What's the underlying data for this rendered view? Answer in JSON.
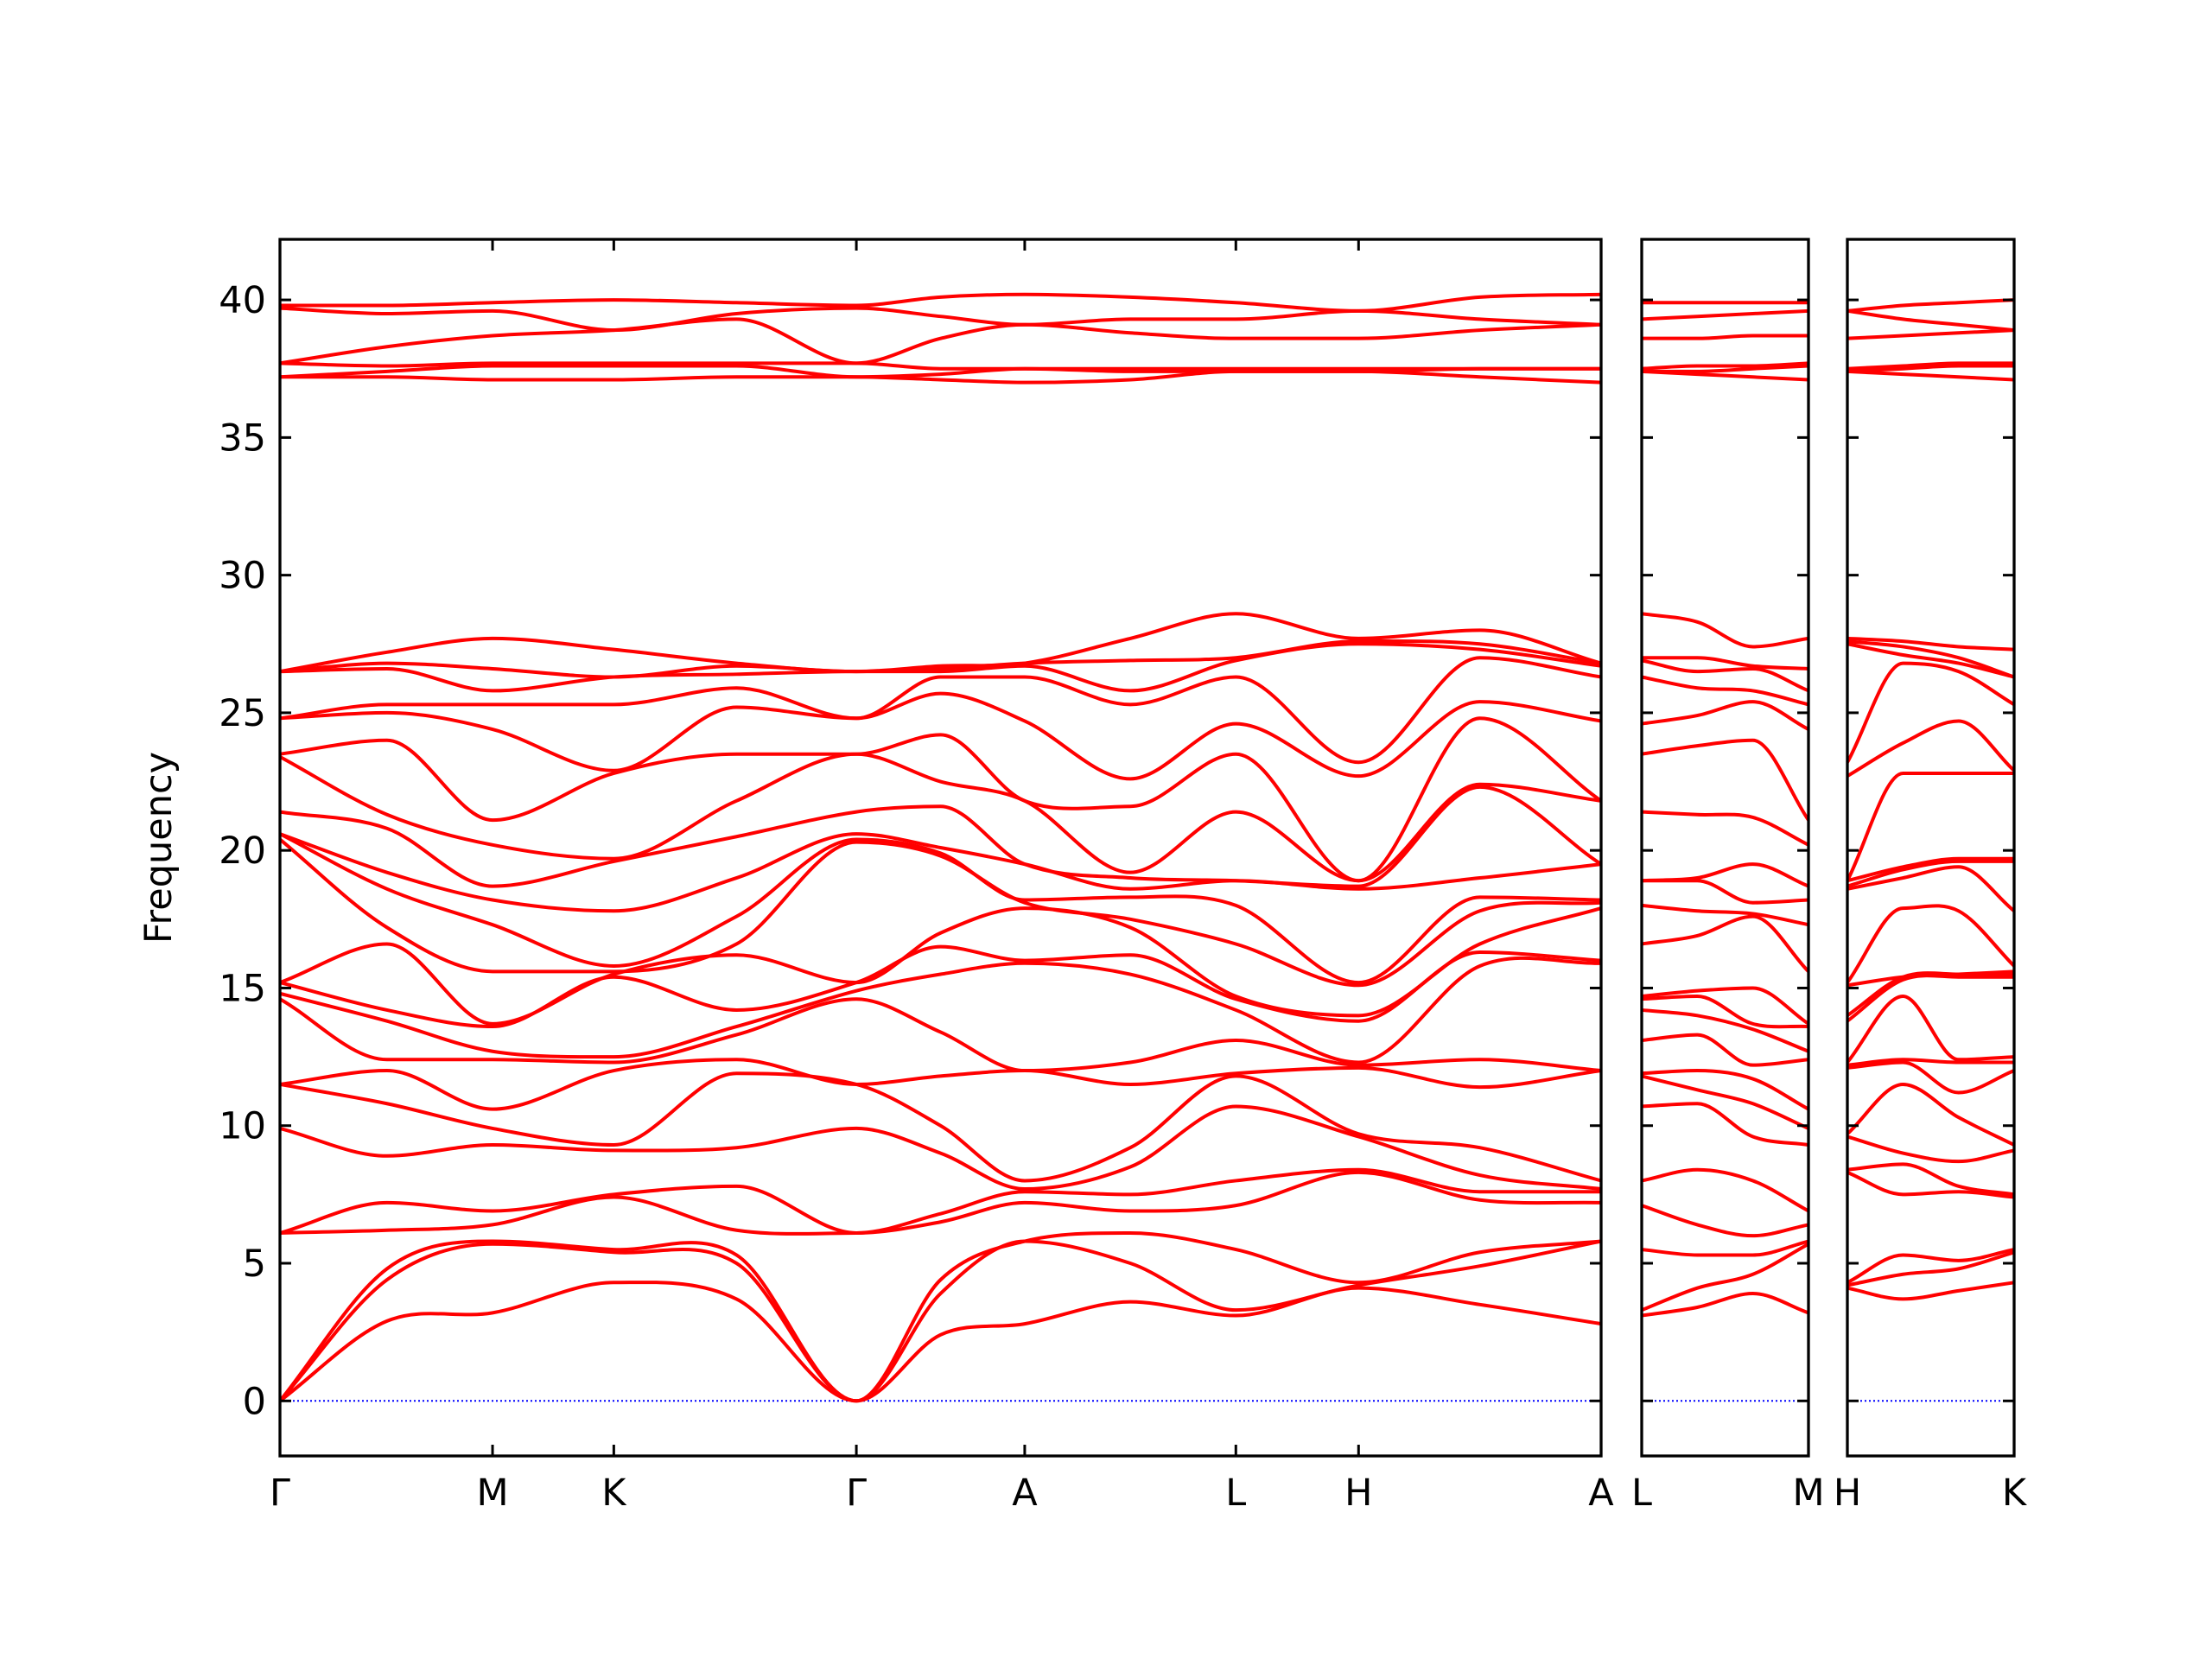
{
  "chart_data": [
    {
      "type": "line",
      "ylabel": "Frequency",
      "color": "#ff0000",
      "hline": 0,
      "hline_color": "#0000ff",
      "xlim": [
        0,
        9.26
      ],
      "ylim": [
        -2,
        42.2
      ],
      "yticks": [
        0,
        5,
        10,
        15,
        20,
        25,
        30,
        35,
        40
      ],
      "xticks": [
        {
          "value": 0,
          "label": "Γ"
        },
        {
          "value": 1.49,
          "label": "M"
        },
        {
          "value": 2.34,
          "label": "K"
        },
        {
          "value": 4.04,
          "label": "Γ"
        },
        {
          "value": 5.22,
          "label": "A"
        },
        {
          "value": 6.7,
          "label": "L"
        },
        {
          "value": 7.56,
          "label": "H"
        },
        {
          "value": 9.26,
          "label": "A"
        }
      ],
      "x": [
        0,
        0.75,
        1.49,
        2.34,
        3.2,
        4.04,
        4.63,
        5.22,
        5.96,
        6.7,
        7.56,
        8.41,
        9.26
      ],
      "series": [
        {
          "values": [
            0,
            2.9,
            3.2,
            4.3,
            3.7,
            0,
            2.4,
            2.8,
            3.6,
            3.1,
            4.1,
            3.5,
            2.8
          ]
        },
        {
          "values": [
            0,
            4.4,
            5.7,
            5.4,
            5.0,
            0,
            3.9,
            5.8,
            5.0,
            3.3,
            4.2,
            4.9,
            5.8
          ]
        },
        {
          "values": [
            0,
            4.8,
            5.8,
            5.5,
            5.3,
            0,
            4.4,
            5.8,
            6.1,
            5.5,
            4.3,
            5.4,
            5.8
          ]
        },
        {
          "values": [
            6.1,
            6.2,
            6.4,
            7.4,
            6.2,
            6.1,
            6.5,
            7.2,
            6.9,
            7.1,
            8.3,
            7.3,
            7.2
          ]
        },
        {
          "values": [
            6.1,
            7.2,
            6.9,
            7.5,
            7.8,
            6.1,
            6.8,
            7.6,
            7.5,
            8.0,
            8.4,
            7.6,
            7.6
          ]
        },
        {
          "values": [
            9.9,
            8.9,
            9.3,
            9.1,
            9.2,
            9.9,
            9.0,
            7.7,
            8.5,
            10.7,
            9.6,
            8.2,
            7.7
          ]
        },
        {
          "values": [
            11.5,
            10.8,
            9.9,
            9.3,
            11.9,
            11.5,
            10.0,
            8.0,
            9.2,
            11.8,
            9.7,
            9.2,
            8.0
          ]
        },
        {
          "values": [
            11.5,
            12.0,
            10.6,
            12.0,
            12.4,
            11.5,
            11.8,
            12.0,
            11.5,
            11.9,
            12.1,
            11.4,
            12.0
          ]
        },
        {
          "values": [
            14.6,
            12.4,
            12.4,
            12.3,
            13.3,
            14.6,
            13.4,
            12.0,
            12.3,
            13.1,
            12.2,
            12.4,
            12.0
          ]
        },
        {
          "values": [
            14.8,
            13.8,
            12.7,
            12.5,
            13.6,
            14.9,
            15.5,
            15.9,
            15.5,
            14.2,
            12.3,
            15.8,
            15.9
          ]
        },
        {
          "values": [
            15.2,
            14.2,
            13.6,
            15.4,
            14.2,
            15.2,
            16.5,
            16.0,
            16.2,
            14.6,
            13.8,
            16.3,
            16.0
          ]
        },
        {
          "values": [
            15.2,
            16.6,
            13.7,
            15.5,
            16.2,
            15.2,
            17.0,
            17.9,
            17.2,
            14.7,
            14.0,
            16.6,
            17.9
          ]
        },
        {
          "values": [
            20.4,
            17.2,
            15.6,
            15.6,
            16.6,
            20.3,
            19.8,
            18.1,
            17.5,
            16.6,
            15.1,
            17.8,
            18.1
          ]
        },
        {
          "values": [
            20.6,
            18.6,
            17.3,
            15.8,
            17.6,
            20.4,
            19.9,
            18.2,
            18.3,
            18.0,
            15.2,
            18.3,
            18.2
          ]
        },
        {
          "values": [
            20.6,
            19.2,
            18.2,
            17.8,
            19.0,
            20.6,
            20.1,
            19.5,
            18.6,
            18.9,
            18.6,
            19.0,
            19.5
          ]
        },
        {
          "values": [
            21.4,
            20.8,
            18.7,
            19.6,
            20.5,
            21.4,
            21.6,
            19.5,
            19.0,
            18.9,
            18.7,
            22.3,
            19.5
          ]
        },
        {
          "values": [
            23.4,
            21.3,
            20.2,
            19.7,
            21.8,
            23.5,
            22.5,
            21.8,
            19.2,
            21.4,
            18.9,
            22.4,
            21.8
          ]
        },
        {
          "values": [
            23.5,
            24.0,
            21.1,
            22.8,
            23.5,
            23.5,
            24.2,
            21.8,
            21.6,
            23.5,
            18.9,
            24.8,
            21.8
          ]
        },
        {
          "values": [
            24.8,
            25.0,
            24.4,
            22.9,
            25.2,
            24.8,
            25.7,
            24.7,
            22.6,
            24.6,
            22.7,
            25.4,
            24.7
          ]
        },
        {
          "values": [
            24.8,
            25.3,
            25.3,
            25.3,
            25.9,
            24.8,
            26.3,
            26.3,
            25.3,
            26.3,
            23.2,
            27.0,
            26.3
          ]
        },
        {
          "values": [
            26.5,
            26.6,
            25.8,
            26.3,
            26.4,
            26.5,
            26.5,
            26.7,
            25.8,
            26.9,
            27.5,
            27.3,
            26.7
          ]
        },
        {
          "values": [
            26.5,
            26.8,
            26.6,
            26.3,
            26.7,
            26.5,
            26.6,
            26.8,
            26.9,
            27.0,
            27.6,
            27.5,
            26.8
          ]
        },
        {
          "values": [
            26.5,
            27.2,
            27.7,
            27.3,
            26.8,
            26.5,
            26.7,
            26.8,
            27.7,
            28.6,
            27.7,
            28.0,
            26.8
          ]
        },
        {
          "values": [
            37.2,
            37.2,
            37.1,
            37.1,
            37.2,
            37.2,
            37.1,
            37.0,
            37.1,
            37.4,
            37.4,
            37.2,
            37.0
          ]
        },
        {
          "values": [
            37.2,
            37.4,
            37.6,
            37.6,
            37.6,
            37.2,
            37.3,
            37.5,
            37.4,
            37.4,
            37.4,
            37.5,
            37.5
          ]
        },
        {
          "values": [
            37.7,
            37.6,
            37.7,
            37.7,
            37.7,
            37.7,
            37.5,
            37.5,
            37.5,
            37.5,
            37.5,
            37.5,
            37.5
          ]
        },
        {
          "values": [
            37.7,
            38.3,
            38.7,
            38.9,
            39.3,
            37.7,
            38.6,
            39.1,
            38.8,
            38.6,
            38.6,
            38.9,
            39.1
          ]
        },
        {
          "values": [
            39.7,
            39.5,
            39.6,
            38.9,
            39.5,
            39.7,
            39.4,
            39.1,
            39.3,
            39.3,
            39.6,
            39.3,
            39.1
          ]
        },
        {
          "values": [
            39.8,
            39.8,
            39.9,
            40.0,
            39.9,
            39.8,
            40.1,
            40.2,
            40.1,
            39.9,
            39.6,
            40.1,
            40.2
          ]
        }
      ]
    },
    {
      "type": "line",
      "color": "#ff0000",
      "hline": 0,
      "hline_color": "#0000ff",
      "xlim": [
        0,
        1.17
      ],
      "ylim": [
        -2,
        42.2
      ],
      "yticks": [
        0,
        5,
        10,
        15,
        20,
        25,
        30,
        35,
        40
      ],
      "xticks": [
        {
          "value": 0,
          "label": "L"
        },
        {
          "value": 1.17,
          "label": "M"
        }
      ],
      "x": [
        0,
        0.39,
        0.78,
        1.17
      ],
      "series": [
        {
          "values": [
            3.1,
            3.4,
            3.9,
            3.2
          ]
        },
        {
          "values": [
            3.3,
            4.1,
            4.6,
            5.7
          ]
        },
        {
          "values": [
            5.5,
            5.3,
            5.3,
            5.8
          ]
        },
        {
          "values": [
            7.1,
            6.4,
            6.0,
            6.4
          ]
        },
        {
          "values": [
            8.0,
            8.4,
            8.0,
            6.9
          ]
        },
        {
          "values": [
            10.7,
            10.8,
            9.6,
            9.3
          ]
        },
        {
          "values": [
            11.8,
            11.3,
            10.8,
            9.9
          ]
        },
        {
          "values": [
            11.9,
            12.0,
            11.7,
            10.6
          ]
        },
        {
          "values": [
            13.1,
            13.3,
            12.2,
            12.4
          ]
        },
        {
          "values": [
            14.2,
            14.0,
            13.5,
            12.7
          ]
        },
        {
          "values": [
            14.6,
            14.7,
            13.7,
            13.6
          ]
        },
        {
          "values": [
            14.7,
            14.9,
            15.0,
            13.7
          ]
        },
        {
          "values": [
            16.6,
            16.9,
            17.6,
            15.6
          ]
        },
        {
          "values": [
            18.0,
            17.8,
            17.7,
            17.3
          ]
        },
        {
          "values": [
            18.9,
            18.9,
            18.1,
            18.2
          ]
        },
        {
          "values": [
            18.9,
            19.0,
            19.5,
            18.7
          ]
        },
        {
          "values": [
            21.4,
            21.3,
            21.2,
            20.2
          ]
        },
        {
          "values": [
            23.5,
            23.8,
            24.0,
            21.1
          ]
        },
        {
          "values": [
            24.6,
            24.9,
            25.4,
            24.4
          ]
        },
        {
          "values": [
            26.3,
            25.9,
            25.8,
            25.3
          ]
        },
        {
          "values": [
            26.9,
            26.5,
            26.6,
            25.8
          ]
        },
        {
          "values": [
            27.0,
            27.0,
            26.7,
            26.6
          ]
        },
        {
          "values": [
            28.6,
            28.3,
            27.4,
            27.7
          ]
        },
        {
          "values": [
            37.4,
            37.3,
            37.2,
            37.1
          ]
        },
        {
          "values": [
            37.4,
            37.4,
            37.5,
            37.6
          ]
        },
        {
          "values": [
            37.5,
            37.6,
            37.6,
            37.7
          ]
        },
        {
          "values": [
            38.6,
            38.6,
            38.7,
            38.7
          ]
        },
        {
          "values": [
            39.3,
            39.4,
            39.5,
            39.6
          ]
        },
        {
          "values": [
            39.9,
            39.9,
            39.9,
            39.9
          ]
        }
      ]
    },
    {
      "type": "line",
      "color": "#ff0000",
      "hline": 0,
      "hline_color": "#0000ff",
      "xlim": [
        0,
        1.17
      ],
      "ylim": [
        -2,
        42.2
      ],
      "yticks": [
        0,
        5,
        10,
        15,
        20,
        25,
        30,
        35,
        40
      ],
      "xticks": [
        {
          "value": 0,
          "label": "H"
        },
        {
          "value": 1.17,
          "label": "K"
        }
      ],
      "x": [
        0,
        0.39,
        0.78,
        1.17
      ],
      "series": [
        {
          "values": [
            4.1,
            3.7,
            4.0,
            4.3
          ]
        },
        {
          "values": [
            4.2,
            4.6,
            4.8,
            5.4
          ]
        },
        {
          "values": [
            4.3,
            5.3,
            5.1,
            5.5
          ]
        },
        {
          "values": [
            8.3,
            7.5,
            7.6,
            7.4
          ]
        },
        {
          "values": [
            8.4,
            8.6,
            7.8,
            7.5
          ]
        },
        {
          "values": [
            9.6,
            9.0,
            8.7,
            9.1
          ]
        },
        {
          "values": [
            9.7,
            11.5,
            10.3,
            9.3
          ]
        },
        {
          "values": [
            12.1,
            12.3,
            11.2,
            12.0
          ]
        },
        {
          "values": [
            12.2,
            12.4,
            12.3,
            12.3
          ]
        },
        {
          "values": [
            12.3,
            14.7,
            12.4,
            12.5
          ]
        },
        {
          "values": [
            13.8,
            15.3,
            15.4,
            15.4
          ]
        },
        {
          "values": [
            14.0,
            15.4,
            15.5,
            15.5
          ]
        },
        {
          "values": [
            15.1,
            15.4,
            15.5,
            15.6
          ]
        },
        {
          "values": [
            15.2,
            17.9,
            17.8,
            15.8
          ]
        },
        {
          "values": [
            18.6,
            19.0,
            19.4,
            17.8
          ]
        },
        {
          "values": [
            18.7,
            19.3,
            19.6,
            19.6
          ]
        },
        {
          "values": [
            18.9,
            19.4,
            19.7,
            19.7
          ]
        },
        {
          "values": [
            18.9,
            22.8,
            22.8,
            22.8
          ]
        },
        {
          "values": [
            22.7,
            23.9,
            24.7,
            22.9
          ]
        },
        {
          "values": [
            23.2,
            26.8,
            26.5,
            25.3
          ]
        },
        {
          "values": [
            27.5,
            27.1,
            26.8,
            26.3
          ]
        },
        {
          "values": [
            27.6,
            27.4,
            27.0,
            26.3
          ]
        },
        {
          "values": [
            27.7,
            27.6,
            27.4,
            27.3
          ]
        },
        {
          "values": [
            37.4,
            37.3,
            37.2,
            37.1
          ]
        },
        {
          "values": [
            37.4,
            37.5,
            37.6,
            37.6
          ]
        },
        {
          "values": [
            37.5,
            37.6,
            37.7,
            37.7
          ]
        },
        {
          "values": [
            38.6,
            38.7,
            38.8,
            38.9
          ]
        },
        {
          "values": [
            39.6,
            39.3,
            39.1,
            38.9
          ]
        },
        {
          "values": [
            39.6,
            39.8,
            39.9,
            40.0
          ]
        }
      ]
    }
  ]
}
